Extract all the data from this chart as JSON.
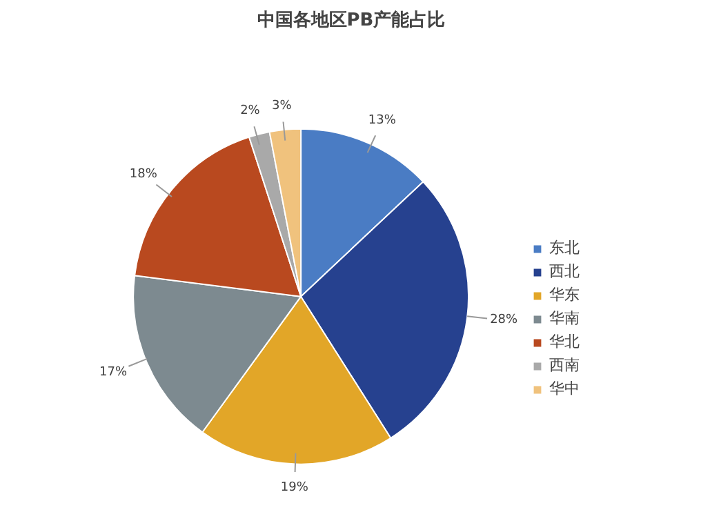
{
  "chart_data": {
    "type": "pie",
    "title": "中国各地区PB产能占比",
    "categories": [
      "东北",
      "西北",
      "华东",
      "华南",
      "华北",
      "西南",
      "华中"
    ],
    "values": [
      13,
      28,
      19,
      17,
      18,
      2,
      3
    ],
    "value_labels": [
      "13%",
      "28%",
      "19%",
      "17%",
      "18%",
      "2%",
      "3%"
    ],
    "colors": [
      "#4a7cc4",
      "#26418f",
      "#e2a628",
      "#7d8a90",
      "#b9491f",
      "#a9a9a9",
      "#f0c27d"
    ],
    "legend": "right"
  }
}
